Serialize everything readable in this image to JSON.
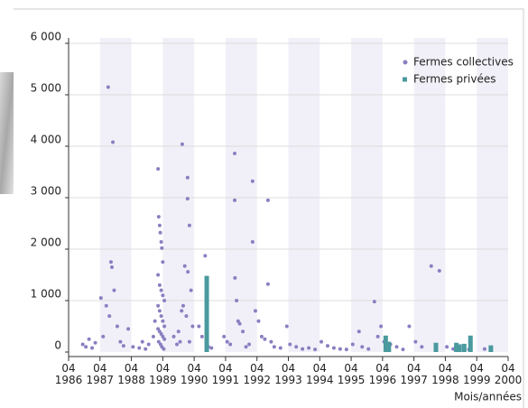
{
  "chart_data": {
    "type": "scatter",
    "x_label": "Mois/années",
    "xlim": [
      1986.25,
      2000.25
    ],
    "xticks": [
      {
        "value": 1986.25,
        "label": "04 1986"
      },
      {
        "value": 1987.25,
        "label": "04 1987"
      },
      {
        "value": 1988.25,
        "label": "04 1988"
      },
      {
        "value": 1989.25,
        "label": "04 1989"
      },
      {
        "value": 1990.25,
        "label": "04 1990"
      },
      {
        "value": 1991.25,
        "label": "04 1991"
      },
      {
        "value": 1992.25,
        "label": "04 1992"
      },
      {
        "value": 1993.25,
        "label": "04 1993"
      },
      {
        "value": 1994.25,
        "label": "04 1994"
      },
      {
        "value": 1995.25,
        "label": "04 1995"
      },
      {
        "value": 1996.25,
        "label": "04 1996"
      },
      {
        "value": 1997.25,
        "label": "04 1997"
      },
      {
        "value": 1998.25,
        "label": "04 1998"
      },
      {
        "value": 1999.25,
        "label": "04 1999"
      },
      {
        "value": 2000.25,
        "label": "04 2000"
      }
    ],
    "ylim": [
      0,
      6000
    ],
    "yticks": [
      0,
      {
        "value": 1000,
        "label": "1 000"
      },
      {
        "value": 2000,
        "label": "2 000"
      },
      {
        "value": 3000,
        "label": "3 000"
      },
      {
        "value": 4000,
        "label": "4 000"
      },
      {
        "value": 5000,
        "label": "5 000"
      },
      {
        "value": 6000,
        "label": "6 000"
      }
    ],
    "grid": true,
    "legend": "top-right",
    "series": [
      {
        "name": "Fermes collectives",
        "color": "#8b7fc1",
        "x": [
          1986.7,
          1986.8,
          1986.9,
          1987.0,
          1987.1,
          1987.28,
          1987.35,
          1987.45,
          1987.51,
          1987.55,
          1987.6,
          1987.63,
          1987.66,
          1987.7,
          1987.8,
          1987.9,
          1988.0,
          1988.15,
          1988.3,
          1988.5,
          1988.6,
          1988.7,
          1988.8,
          1988.95,
          1989.0,
          1989.1,
          1989.12,
          1989.15,
          1989.17,
          1989.2,
          1989.22,
          1989.25,
          1989.1,
          1989.15,
          1989.2,
          1989.25,
          1989.3,
          1989.1,
          1989.15,
          1989.2,
          1989.25,
          1989.3,
          1989.1,
          1989.15,
          1989.2,
          1989.25,
          1989.3,
          1989.12,
          1989.18,
          1989.22,
          1989.28,
          1989.6,
          1989.7,
          1989.8,
          1989.87,
          1989.95,
          1990.04,
          1990.04,
          1990.05,
          1990.1,
          1990.15,
          1989.9,
          1989.85,
          1990.0,
          1990.2,
          1989.75,
          1990.1,
          1990.4,
          1990.5,
          1990.6,
          1990.65,
          1990.7,
          1990.8,
          1991.2,
          1991.3,
          1991.4,
          1991.54,
          1991.54,
          1991.55,
          1991.6,
          1991.65,
          1991.7,
          1991.8,
          1991.9,
          1992.0,
          1992.11,
          1992.11,
          1992.2,
          1992.3,
          1992.4,
          1992.5,
          1992.6,
          1992.6,
          1992.7,
          1992.8,
          1993.0,
          1993.2,
          1993.3,
          1993.5,
          1993.7,
          1993.9,
          1994.1,
          1994.3,
          1994.5,
          1994.7,
          1994.9,
          1995.1,
          1995.3,
          1995.5,
          1995.6,
          1995.8,
          1995.99,
          1996.1,
          1996.2,
          1996.3,
          1996.5,
          1996.7,
          1996.9,
          1997.1,
          1997.3,
          1997.5,
          1997.8,
          1998.06,
          1998.3,
          1998.5,
          1999.0,
          1999.5
        ],
        "values": [
          150,
          100,
          250,
          80,
          180,
          1050,
          300,
          900,
          5150,
          700,
          1750,
          1650,
          4080,
          1200,
          500,
          200,
          120,
          450,
          100,
          80,
          200,
          60,
          150,
          300,
          600,
          3560,
          2630,
          2460,
          2320,
          2140,
          2020,
          1750,
          1500,
          1300,
          1200,
          1100,
          1000,
          900,
          800,
          700,
          600,
          500,
          450,
          400,
          350,
          300,
          250,
          200,
          150,
          100,
          60,
          300,
          150,
          200,
          4040,
          1670,
          3390,
          2980,
          1560,
          2460,
          1200,
          900,
          800,
          700,
          500,
          400,
          200,
          500,
          300,
          1870,
          200,
          100,
          80,
          300,
          200,
          150,
          3860,
          2950,
          1440,
          1000,
          600,
          550,
          400,
          100,
          150,
          3320,
          2140,
          800,
          600,
          300,
          250,
          2950,
          1320,
          200,
          100,
          80,
          500,
          150,
          100,
          60,
          80,
          50,
          200,
          120,
          80,
          60,
          50,
          150,
          400,
          100,
          60,
          980,
          300,
          500,
          200,
          150,
          100,
          50,
          500,
          200,
          100,
          1670,
          1580,
          100,
          60,
          50,
          60
        ]
      },
      {
        "name": "Fermes privées",
        "color": "#4a9a9e",
        "type": "bar",
        "x": [
          1990.65,
          1996.35,
          1996.45,
          1997.95,
          1998.6,
          1998.7,
          1998.85,
          1999.05,
          1999.7
        ],
        "values": [
          1480,
          320,
          200,
          180,
          180,
          150,
          160,
          320,
          130
        ]
      }
    ]
  }
}
